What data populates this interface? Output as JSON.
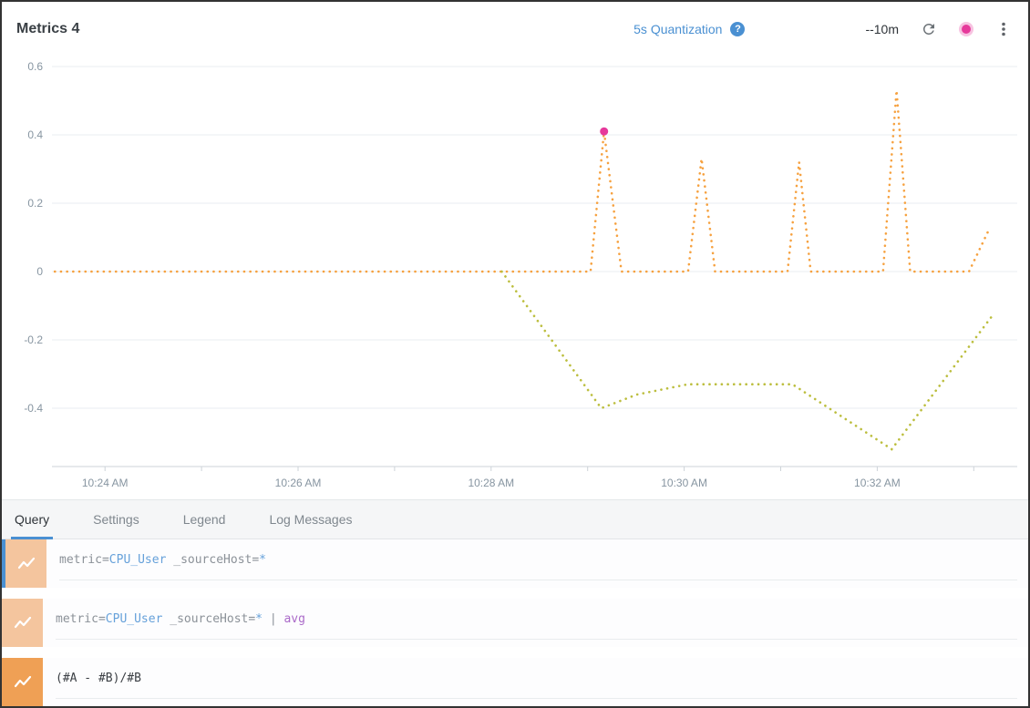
{
  "header": {
    "title": "Metrics 4",
    "quantization_label": "5s Quantization",
    "help_glyph": "?",
    "time_range": "--10m",
    "accent_blue": "#4a90d2",
    "live_dot_color": "#e6399b"
  },
  "tabs": [
    {
      "label": "Query",
      "active": true
    },
    {
      "label": "Settings",
      "active": false
    },
    {
      "label": "Legend",
      "active": false
    },
    {
      "label": "Log Messages",
      "active": false
    }
  ],
  "code_colors": {
    "plain": "#8b9198",
    "value": "#66a1da",
    "operator": "#ab6bc9",
    "formula": "#3b3f44"
  },
  "queries": [
    {
      "row": "A",
      "icon_color": "#f4c59e",
      "selected": true,
      "segments": [
        {
          "text": "metric=",
          "color": "plain"
        },
        {
          "text": "CPU_User",
          "color": "value"
        },
        {
          "text": " _sourceHost=",
          "color": "plain"
        },
        {
          "text": "*",
          "color": "value"
        }
      ]
    },
    {
      "row": "B",
      "icon_color": "#f4c59e",
      "selected": false,
      "segments": [
        {
          "text": "metric=",
          "color": "plain"
        },
        {
          "text": "CPU_User",
          "color": "value"
        },
        {
          "text": " _sourceHost=",
          "color": "plain"
        },
        {
          "text": "*",
          "color": "value"
        },
        {
          "text": " | ",
          "color": "plain"
        },
        {
          "text": "avg",
          "color": "operator"
        }
      ]
    },
    {
      "row": "C",
      "icon_color": "#efa055",
      "selected": false,
      "segments": [
        {
          "text": "(#A - #B)/#B",
          "color": "formula"
        }
      ]
    }
  ],
  "chart_data": {
    "type": "line",
    "title": "",
    "xlabel": "",
    "ylabel": "",
    "x_axis_unit": "time of day, decimal minutes past 10:00 AM",
    "xlim_minutes": [
      23.45,
      33.45
    ],
    "ylim": [
      -0.5707,
      0.6293
    ],
    "grid": true,
    "grid_color": "#e9edf0",
    "axis_color": "#cdd3d8",
    "label_color": "#8795a1",
    "legend_position": "none",
    "line_style": "dotted",
    "yticks": [
      {
        "v": 0.6,
        "label": "0.6"
      },
      {
        "v": 0.4,
        "label": "0.4"
      },
      {
        "v": 0.2,
        "label": "0.2"
      },
      {
        "v": 0,
        "label": "0"
      },
      {
        "v": -0.2,
        "label": "-0.2"
      },
      {
        "v": -0.4,
        "label": "-0.4"
      }
    ],
    "xticks": [
      {
        "t": 24,
        "label": "10:24 AM"
      },
      {
        "t": 26,
        "label": "10:26 AM"
      },
      {
        "t": 28,
        "label": "10:28 AM"
      },
      {
        "t": 30,
        "label": "10:30 AM"
      },
      {
        "t": 32,
        "label": "10:32 AM"
      }
    ],
    "minor_ticks": {
      "start": 24,
      "end": 33,
      "step": 1
    },
    "series": [
      {
        "name": "orange-dotted-series",
        "color": "#f6a13f",
        "points": [
          [
            23.48,
            0
          ],
          [
            29.03,
            0
          ],
          [
            29.17,
            0.41
          ],
          [
            29.35,
            0
          ],
          [
            30.04,
            0
          ],
          [
            30.18,
            0.33
          ],
          [
            30.32,
            0
          ],
          [
            31.07,
            0
          ],
          [
            31.19,
            0.32
          ],
          [
            31.31,
            0
          ],
          [
            32.06,
            0
          ],
          [
            32.2,
            0.53
          ],
          [
            32.34,
            0
          ],
          [
            32.95,
            0
          ],
          [
            33.17,
            0.13
          ]
        ]
      },
      {
        "name": "olive-dotted-series",
        "color": "#bcbe3e",
        "points": [
          [
            28.11,
            0
          ],
          [
            29.14,
            -0.4
          ],
          [
            29.51,
            -0.36
          ],
          [
            30.04,
            -0.33
          ],
          [
            31.12,
            -0.33
          ],
          [
            32.15,
            -0.52
          ],
          [
            33.19,
            -0.13
          ]
        ]
      }
    ],
    "marker": {
      "t": 29.17,
      "v": 0.41,
      "color": "#e6399b",
      "radius": 4.5
    }
  }
}
